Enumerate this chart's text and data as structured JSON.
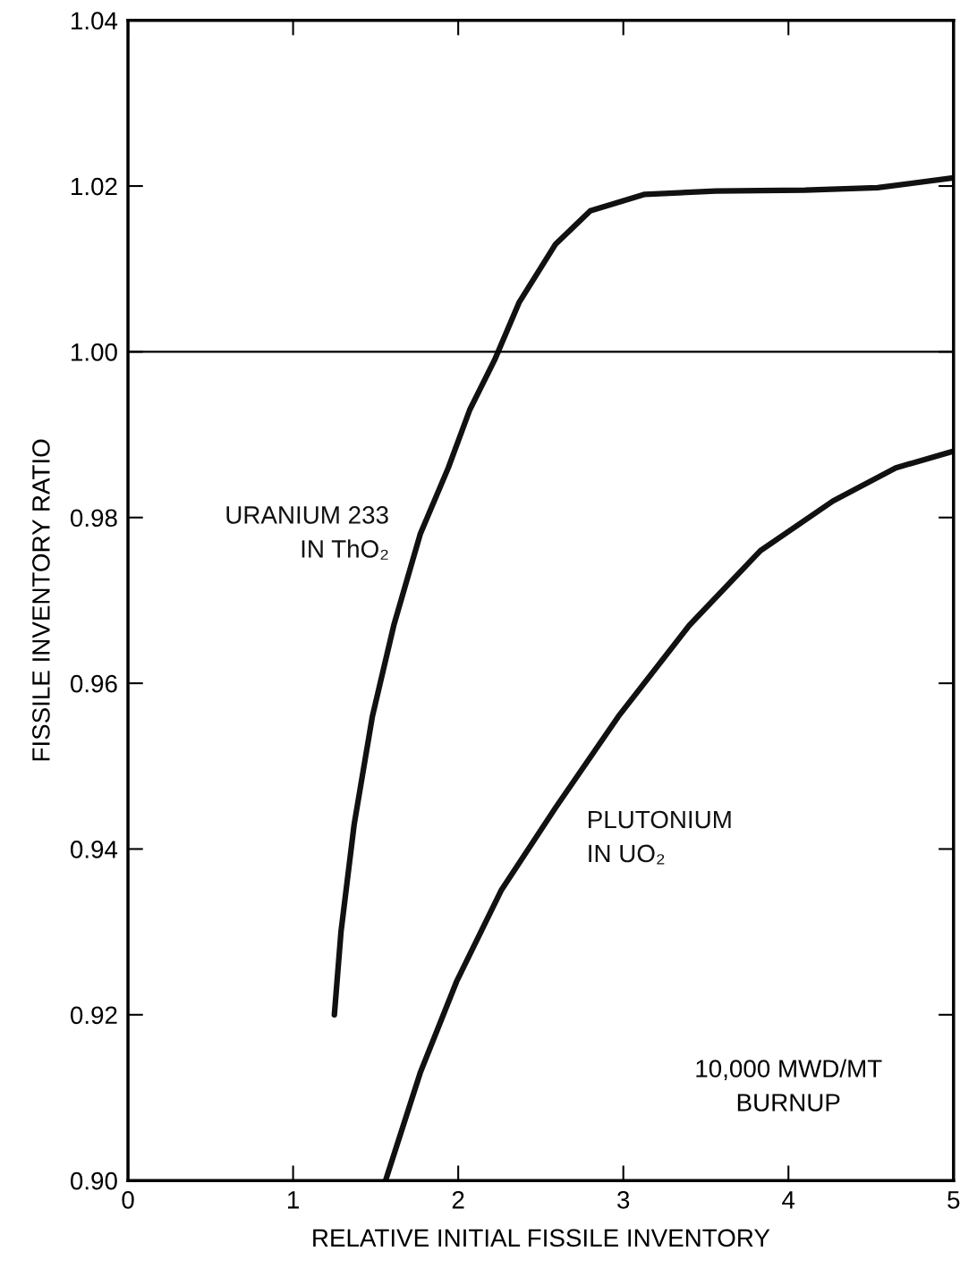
{
  "chart_data": {
    "type": "line",
    "xlabel": "RELATIVE INITIAL FISSILE INVENTORY",
    "ylabel": "FISSILE INVENTORY RATIO",
    "xlim": [
      0,
      5
    ],
    "xticks": [
      0,
      1,
      2,
      3,
      4,
      5
    ],
    "ylim": [
      0.9,
      1.04
    ],
    "yticks": [
      {
        "value": 0.9,
        "label": "0.90"
      },
      {
        "value": 0.92,
        "label": "0.92"
      },
      {
        "value": 0.94,
        "label": "0.94"
      },
      {
        "value": 0.96,
        "label": "0.96"
      },
      {
        "value": 0.98,
        "label": "0.98"
      },
      {
        "value": 1.0,
        "label": "1.00"
      },
      {
        "value": 1.02,
        "label": "1.02"
      },
      {
        "value": 1.04,
        "label": "1.04"
      }
    ],
    "grid": false,
    "legend": false,
    "marker": "none",
    "line_style": "solid",
    "ref_lines": [
      {
        "axis": "y",
        "value": 1.0,
        "color": "#000000"
      }
    ],
    "series": [
      {
        "name": "URANIUM 233\nIN ThO₂",
        "color": "#111111",
        "x": [
          1.25,
          1.29,
          1.37,
          1.48,
          1.61,
          1.77,
          1.94,
          2.07,
          2.22,
          2.37,
          2.59,
          2.8,
          3.13,
          3.56,
          4.1,
          4.54,
          5.0
        ],
        "values": [
          0.92,
          0.93,
          0.943,
          0.956,
          0.967,
          0.978,
          0.986,
          0.993,
          0.999,
          1.006,
          1.013,
          1.017,
          1.019,
          1.0194,
          1.0195,
          1.0198,
          1.021
        ]
      },
      {
        "name": "PLUTONIUM\nIN UO₂",
        "color": "#111111",
        "x": [
          1.56,
          1.77,
          1.99,
          2.26,
          2.59,
          2.97,
          3.4,
          3.83,
          4.27,
          4.65,
          5.0
        ],
        "values": [
          0.9,
          0.913,
          0.924,
          0.935,
          0.945,
          0.956,
          0.967,
          0.976,
          0.982,
          0.986,
          0.988
        ]
      }
    ],
    "annotations": [
      "10,000 MWD/MT\nBURNUP"
    ]
  }
}
